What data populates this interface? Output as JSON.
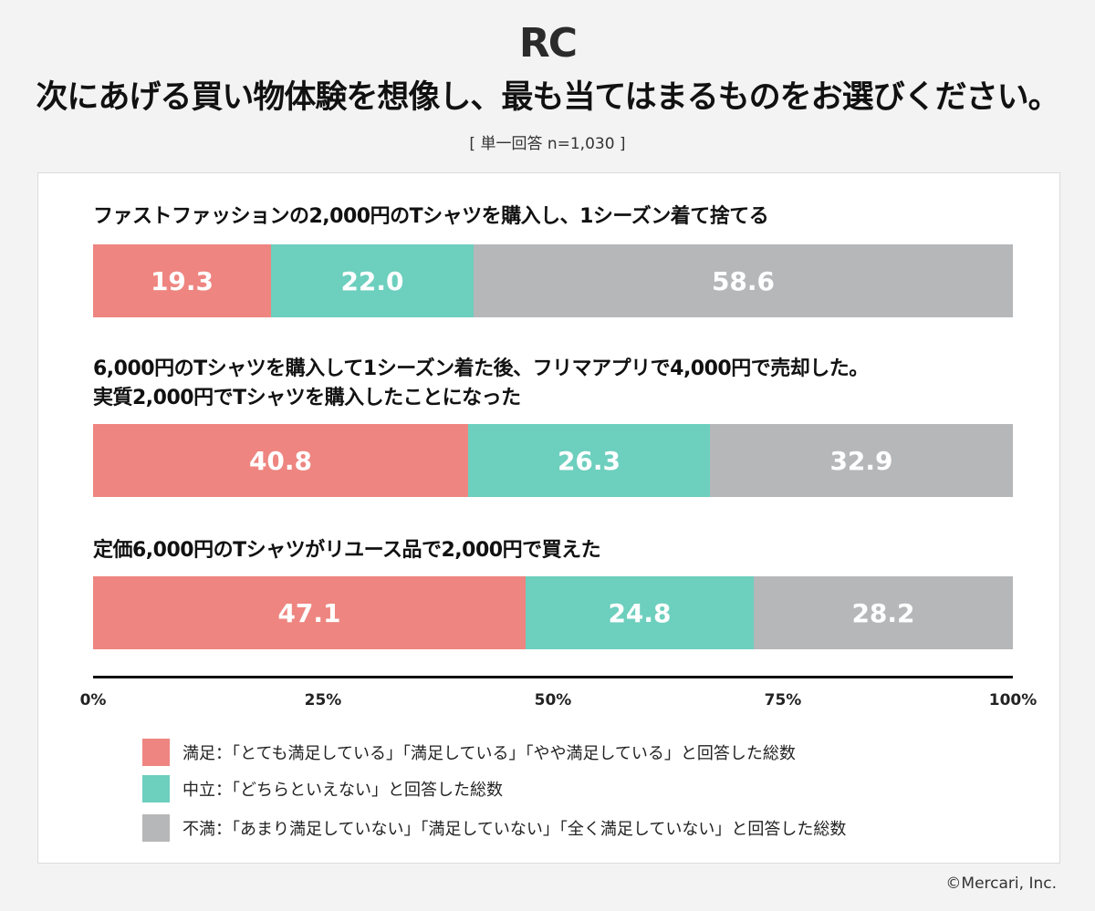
{
  "logo": "RC",
  "title": "次にあげる買い物体験を想像し、最も当てはまるものをお選びください。",
  "subtitle": "[ 単一回答 n=1,030 ]",
  "copyright": "©Mercari, Inc.",
  "colors": {
    "satisfied": "#ee8580",
    "neutral": "#6dcfbe",
    "dissatisfied": "#b5b7b9"
  },
  "chart_data": {
    "type": "bar",
    "orientation": "horizontal",
    "stacked": true,
    "categories": [
      "ファストファッションの2,000円のTシャツを購入し、1シーズン着て捨てる",
      "6,000円のTシャツを購入して1シーズン着た後、フリマアプリで4,000円で売却した。実質2,000円でTシャツを購入したことになった",
      "定価6,000円のTシャツがリユース品で2,000円で買えた"
    ],
    "category_lines": [
      [
        "ファストファッションの2,000円のTシャツを購入し、1シーズン着て捨てる"
      ],
      [
        "6,000円のTシャツを購入して1シーズン着た後、フリマアプリで4,000円で売却した。",
        "実質2,000円でTシャツを購入したことになった"
      ],
      [
        "定価6,000円のTシャツがリユース品で2,000円で買えた"
      ]
    ],
    "series": [
      {
        "name": "満足：「とても満足している」「満足している」「やや満足している」と回答した総数",
        "values": [
          19.3,
          40.8,
          47.1
        ]
      },
      {
        "name": "中立：「どちらといえない」と回答した総数",
        "values": [
          22.0,
          26.3,
          24.8
        ]
      },
      {
        "name": "不満：「あまり満足していない」「満足していない」「全く満足していない」と回答した総数",
        "values": [
          58.6,
          32.9,
          28.2
        ]
      }
    ],
    "xlim": [
      0,
      100
    ],
    "xticks": [
      "0%",
      "25%",
      "50%",
      "75%",
      "100%"
    ],
    "legend_position": "bottom"
  }
}
